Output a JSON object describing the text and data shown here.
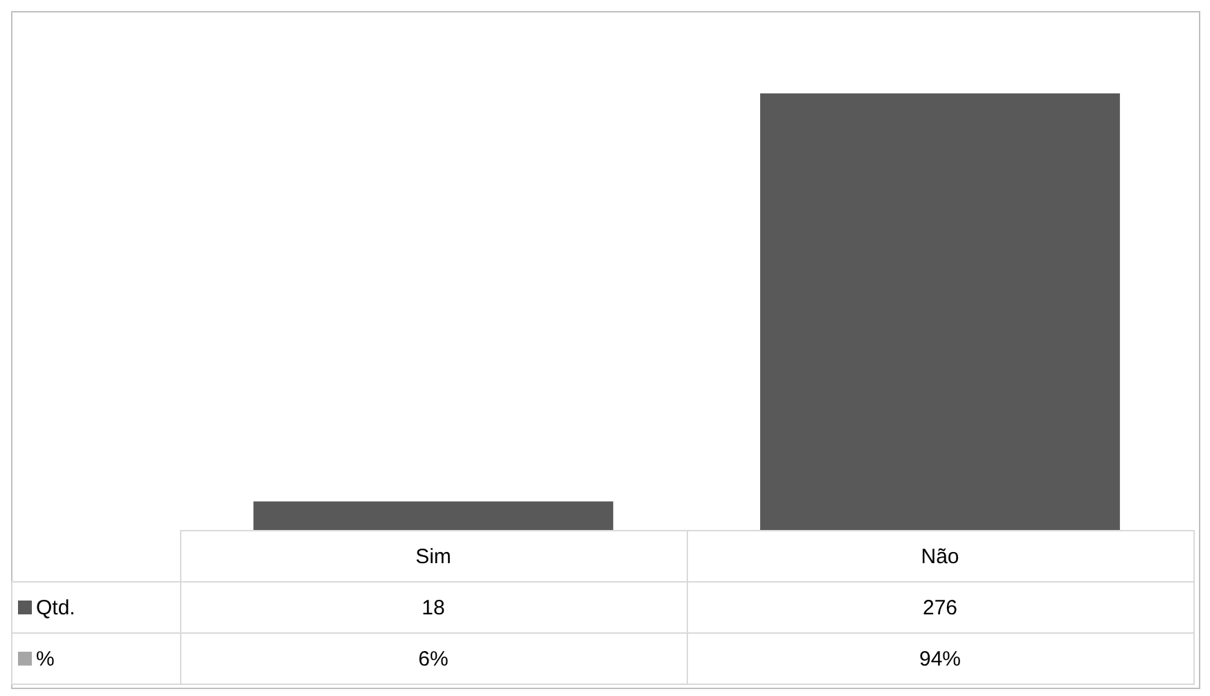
{
  "chart_data": {
    "type": "bar",
    "categories": [
      "Sim",
      "Não"
    ],
    "series": [
      {
        "name": "Qtd.",
        "color": "#595959",
        "values": [
          18,
          276
        ]
      },
      {
        "name": "%",
        "color": "#a6a6a6",
        "values": [
          0.06,
          0.94
        ],
        "value_labels": [
          "6%",
          "94%"
        ]
      }
    ],
    "data_labels": true,
    "legend": "bottom"
  }
}
